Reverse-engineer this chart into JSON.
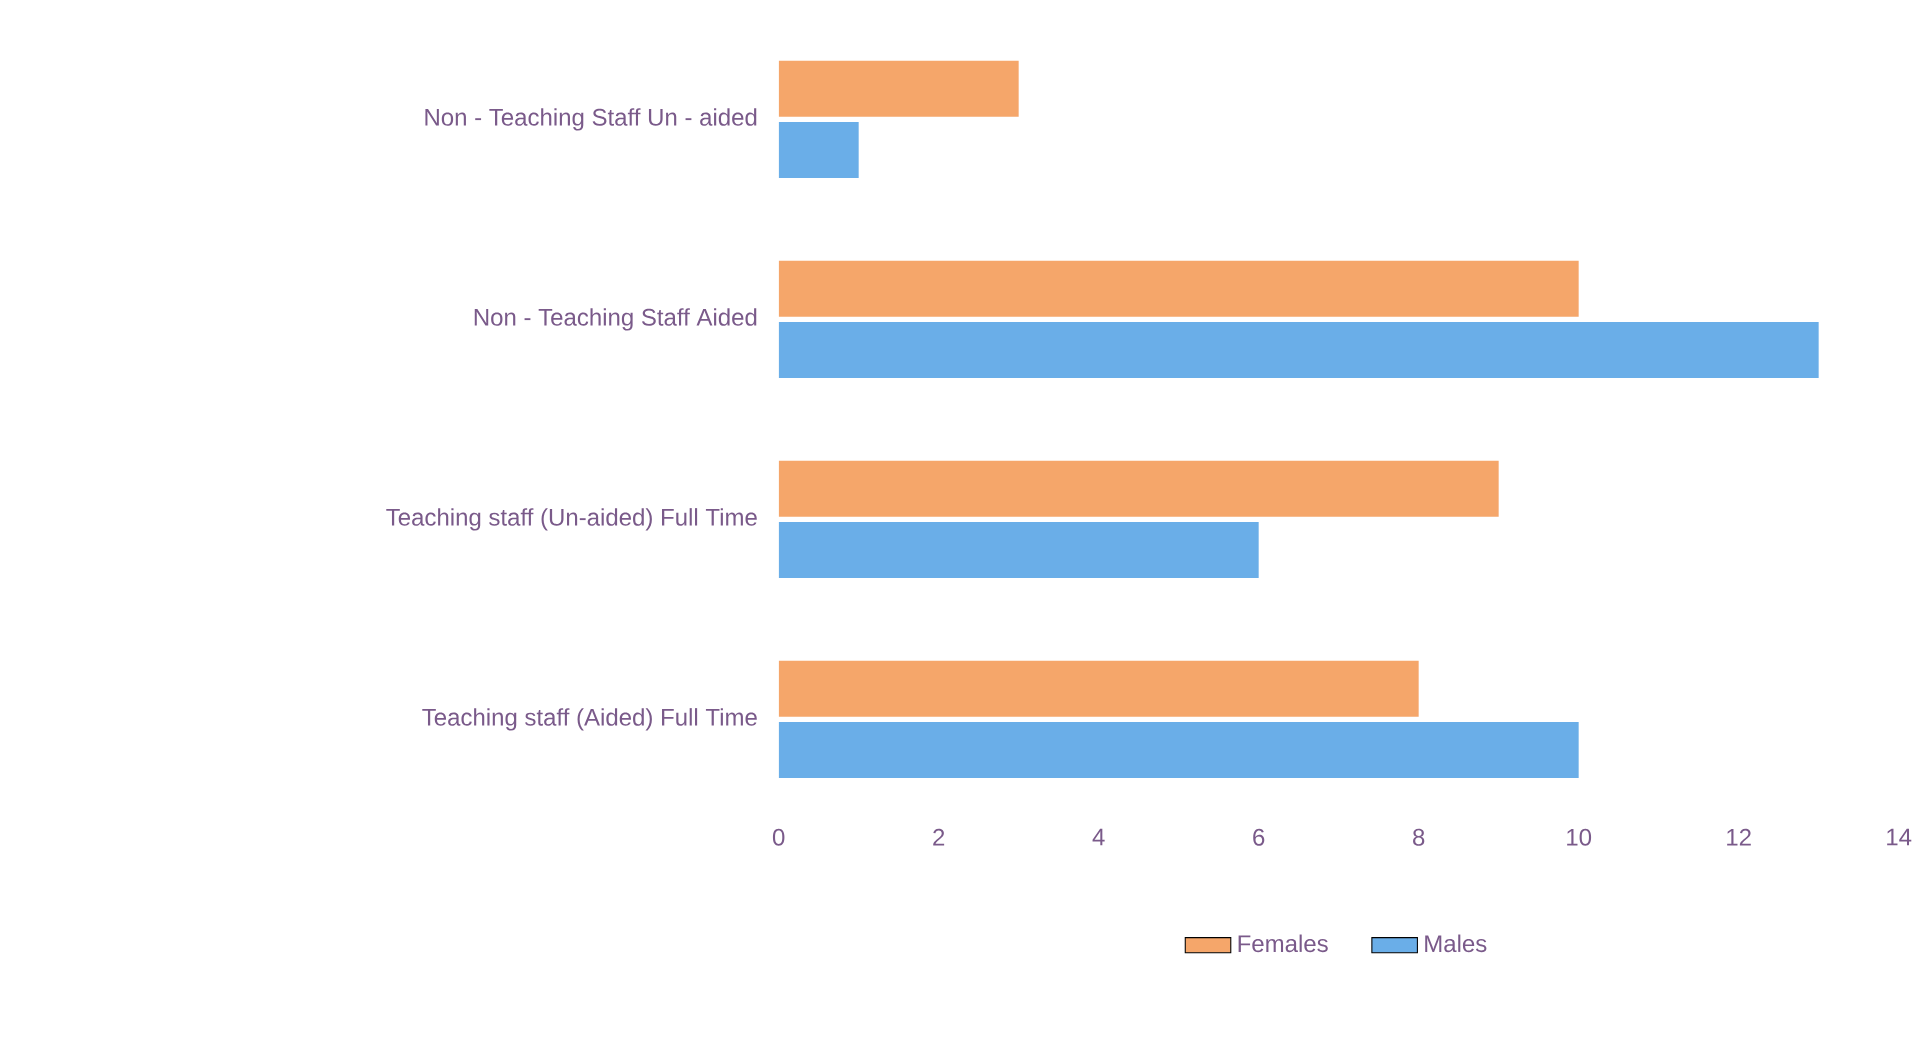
{
  "chart_data": {
    "type": "bar",
    "orientation": "horizontal",
    "categories": [
      "Non - Teaching Staff Un - aided",
      "Non - Teaching Staff Aided",
      "Teaching staff (Un-aided) Full Time",
      "Teaching staff (Aided) Full Time"
    ],
    "series": [
      {
        "name": "Females",
        "color": "#f5a66a",
        "values": [
          3,
          10,
          9,
          8
        ]
      },
      {
        "name": "Males",
        "color": "#6aaee8",
        "values": [
          1,
          13,
          6,
          10
        ]
      }
    ],
    "xlim": [
      0,
      14
    ],
    "xticks": [
      0,
      2,
      4,
      6,
      8,
      10,
      12,
      14
    ],
    "grid": false,
    "legend": "bottom"
  }
}
